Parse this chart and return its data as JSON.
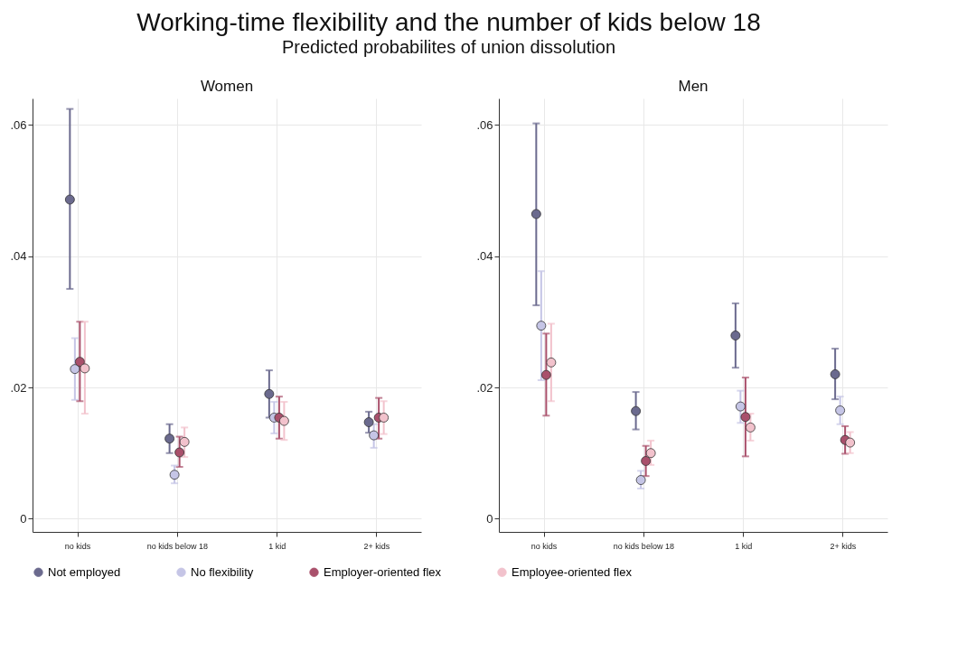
{
  "chart_data": [
    {
      "type": "scatter",
      "title": "Women",
      "annotations": [
        "Working-time flexibility and the number of kids below 18",
        "Predicted probabilites of union dissolution"
      ],
      "categories": [
        "no kids",
        "no kids below 18",
        "1 kid",
        "2+ kids"
      ],
      "ylim": [
        -0.002,
        0.064
      ],
      "yticks": [
        0,
        {
          "value": 0.02,
          "label": ".02"
        },
        {
          "value": 0.04,
          "label": ".04"
        },
        {
          "value": 0.06,
          "label": ".06"
        }
      ],
      "grid": true,
      "legend": "bottom",
      "marker": "circle",
      "series": [
        {
          "name": "Not employed",
          "color": "#6b6a8e",
          "values": [
            0.0486,
            0.0122,
            0.019,
            0.0147
          ],
          "errors": [
            [
              0.035,
              0.0624
            ],
            [
              0.01,
              0.0144
            ],
            [
              0.0154,
              0.0226
            ],
            [
              0.0131,
              0.0163
            ]
          ]
        },
        {
          "name": "No flexibility",
          "color": "#c5c5e6",
          "values": [
            0.0228,
            0.0067,
            0.0154,
            0.0127
          ],
          "errors": [
            [
              0.0181,
              0.0275
            ],
            [
              0.0054,
              0.0081
            ],
            [
              0.013,
              0.0178
            ],
            [
              0.0108,
              0.0144
            ]
          ]
        },
        {
          "name": "Employer-oriented flex",
          "color": "#a9506b",
          "values": [
            0.0239,
            0.0101,
            0.0154,
            0.0154
          ],
          "errors": [
            [
              0.0179,
              0.03
            ],
            [
              0.0079,
              0.0125
            ],
            [
              0.0122,
              0.0186
            ],
            [
              0.0122,
              0.0184
            ]
          ]
        },
        {
          "name": "Employee-oriented flex",
          "color": "#f2c2cc",
          "values": [
            0.0229,
            0.0117,
            0.0149,
            0.0154
          ],
          "errors": [
            [
              0.016,
              0.03
            ],
            [
              0.0094,
              0.0139
            ],
            [
              0.012,
              0.0178
            ],
            [
              0.0129,
              0.0179
            ]
          ]
        }
      ]
    },
    {
      "type": "scatter",
      "title": "Men",
      "categories": [
        "no kids",
        "no kids below 18",
        "1 kid",
        "2+ kids"
      ],
      "ylim": [
        -0.002,
        0.064
      ],
      "yticks": [
        0,
        {
          "value": 0.02,
          "label": ".02"
        },
        {
          "value": 0.04,
          "label": ".04"
        },
        {
          "value": 0.06,
          "label": ".06"
        }
      ],
      "grid": true,
      "legend": "bottom",
      "marker": "circle",
      "series": [
        {
          "name": "Not employed",
          "color": "#6b6a8e",
          "values": [
            0.0464,
            0.0164,
            0.0279,
            0.022
          ],
          "errors": [
            [
              0.0325,
              0.0602
            ],
            [
              0.0136,
              0.0193
            ],
            [
              0.023,
              0.0328
            ],
            [
              0.0182,
              0.0259
            ]
          ]
        },
        {
          "name": "No flexibility",
          "color": "#c5c5e6",
          "values": [
            0.0294,
            0.0059,
            0.0171,
            0.0165
          ],
          "errors": [
            [
              0.0211,
              0.0377
            ],
            [
              0.0046,
              0.0073
            ],
            [
              0.0146,
              0.0195
            ],
            [
              0.0144,
              0.0186
            ]
          ]
        },
        {
          "name": "Employer-oriented flex",
          "color": "#a9506b",
          "values": [
            0.0219,
            0.0088,
            0.0155,
            0.012
          ],
          "errors": [
            [
              0.0157,
              0.0282
            ],
            [
              0.0065,
              0.0111
            ],
            [
              0.0095,
              0.0215
            ],
            [
              0.0099,
              0.0141
            ]
          ]
        },
        {
          "name": "Employee-oriented flex",
          "color": "#f2c2cc",
          "values": [
            0.0238,
            0.01,
            0.0139,
            0.0116
          ],
          "errors": [
            [
              0.0179,
              0.0297
            ],
            [
              0.0082,
              0.0119
            ],
            [
              0.0119,
              0.016
            ],
            [
              0.01,
              0.0132
            ]
          ]
        }
      ]
    }
  ]
}
